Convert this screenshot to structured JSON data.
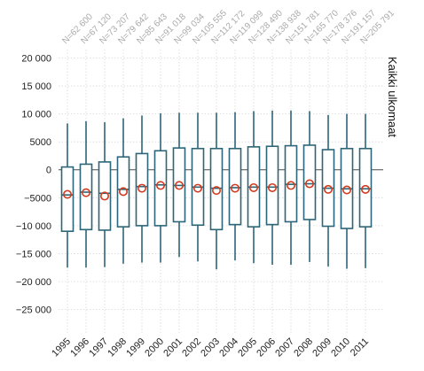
{
  "chart_data": {
    "type": "box",
    "panel_label": "Kaikki ulkomaat",
    "categories": [
      "1995",
      "1996",
      "1997",
      "1998",
      "1999",
      "2000",
      "2001",
      "2002",
      "2003",
      "2004",
      "2005",
      "2006",
      "2007",
      "2008",
      "2009",
      "2010",
      "2011"
    ],
    "n_labels": [
      "N=62 600",
      "N=67 120",
      "N=73 207",
      "N=79 642",
      "N=85 643",
      "N=91 018",
      "N=99 034",
      "N=105 555",
      "N=112 172",
      "N=119 099",
      "N=128 490",
      "N=138 938",
      "N=151 781",
      "N=165 770",
      "N=178 376",
      "N=191 157",
      "N=205 791"
    ],
    "boxes": [
      {
        "whisker_low": -17500,
        "q1": -11000,
        "median": -4500,
        "q3": 500,
        "whisker_high": 8300,
        "mean": -4400
      },
      {
        "whisker_low": -17500,
        "q1": -10700,
        "median": -4000,
        "q3": 1000,
        "whisker_high": 8700,
        "mean": -4100
      },
      {
        "whisker_low": -17400,
        "q1": -10800,
        "median": -4200,
        "q3": 1400,
        "whisker_high": 8500,
        "mean": -4700
      },
      {
        "whisker_low": -16800,
        "q1": -10200,
        "median": -3500,
        "q3": 2300,
        "whisker_high": 9200,
        "mean": -3900
      },
      {
        "whisker_low": -16600,
        "q1": -10000,
        "median": -3000,
        "q3": 2900,
        "whisker_high": 9700,
        "mean": -3300
      },
      {
        "whisker_low": -16600,
        "q1": -10000,
        "median": -2700,
        "q3": 3400,
        "whisker_high": 10100,
        "mean": -2800
      },
      {
        "whisker_low": -15600,
        "q1": -9300,
        "median": -2800,
        "q3": 3900,
        "whisker_high": 10200,
        "mean": -2800
      },
      {
        "whisker_low": -16400,
        "q1": -9900,
        "median": -3100,
        "q3": 3800,
        "whisker_high": 10200,
        "mean": -3300
      },
      {
        "whisker_low": -17800,
        "q1": -10700,
        "median": -3300,
        "q3": 3800,
        "whisker_high": 10200,
        "mean": -3700
      },
      {
        "whisker_low": -16200,
        "q1": -9800,
        "median": -3200,
        "q3": 3800,
        "whisker_high": 10300,
        "mean": -3300
      },
      {
        "whisker_low": -16700,
        "q1": -10200,
        "median": -3100,
        "q3": 4100,
        "whisker_high": 10500,
        "mean": -3200
      },
      {
        "whisker_low": -17000,
        "q1": -9800,
        "median": -3100,
        "q3": 4200,
        "whisker_high": 10600,
        "mean": -3200
      },
      {
        "whisker_low": -17000,
        "q1": -9300,
        "median": -2600,
        "q3": 4300,
        "whisker_high": 10600,
        "mean": -2800
      },
      {
        "whisker_low": -16500,
        "q1": -8900,
        "median": -2500,
        "q3": 4400,
        "whisker_high": 10500,
        "mean": -2500
      },
      {
        "whisker_low": -17300,
        "q1": -10100,
        "median": -3300,
        "q3": 3600,
        "whisker_high": 9800,
        "mean": -3500
      },
      {
        "whisker_low": -17700,
        "q1": -10500,
        "median": -3400,
        "q3": 3800,
        "whisker_high": 10000,
        "mean": -3600
      },
      {
        "whisker_low": -17600,
        "q1": -10200,
        "median": -3400,
        "q3": 3800,
        "whisker_high": 10000,
        "mean": -3500
      }
    ],
    "y_ticks": [
      20000,
      15000,
      10000,
      5000,
      0,
      -5000,
      -10000,
      -15000,
      -20000,
      -25000
    ],
    "y_tick_labels": [
      "20 000",
      "15 000",
      "10 000",
      "5000",
      "0",
      "−5000",
      "−10 000",
      "−15 000",
      "−20 000",
      "−25 000"
    ],
    "ylim": [
      -29500,
      21500
    ],
    "grid": true,
    "colors": {
      "box": "#2c6678",
      "mean_marker": "#d23a1e",
      "zero_line": "#4a4a4a",
      "grid": "#d8d8d8",
      "n_label": "#aaaaaa"
    }
  }
}
